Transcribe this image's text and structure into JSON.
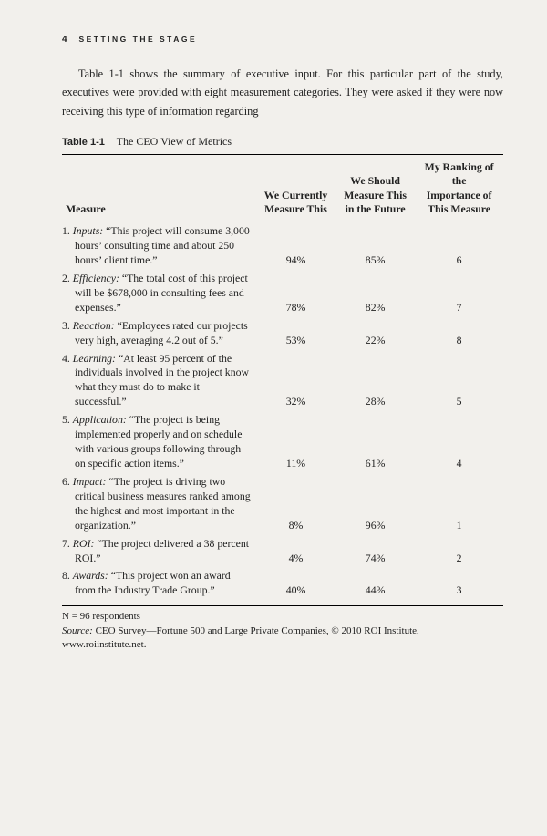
{
  "header": {
    "page_number": "4",
    "running_title": "SETTING THE STAGE"
  },
  "intro": "Table 1-1 shows the summary of executive input. For this particular part of the study, executives were provided with eight measurement categories. They were asked if they were now receiving this type of information regarding",
  "table": {
    "label": "Table 1-1",
    "title": "The CEO View of Metrics",
    "columns": {
      "measure": "Measure",
      "col1_l1": "We Currently",
      "col1_l2": "Measure This",
      "col2_l1": "We Should",
      "col2_l2": "Measure This",
      "col2_l3": "in the Future",
      "col3_l1": "My Ranking of the",
      "col3_l2": "Importance of",
      "col3_l3": "This Measure"
    },
    "rows": [
      {
        "num": "1.",
        "term": "Inputs:",
        "rest": " “This project will consume 3,000 hours’ consulting time and about 250 hours’ client time.”",
        "c1": "94%",
        "c2": "85%",
        "c3": "6"
      },
      {
        "num": "2.",
        "term": "Efficiency:",
        "rest": " “The total cost of this project will be $678,000 in consulting fees and expenses.”",
        "c1": "78%",
        "c2": "82%",
        "c3": "7"
      },
      {
        "num": "3.",
        "term": "Reaction:",
        "rest": " “Employees rated our projects very high, averaging 4.2 out of 5.”",
        "c1": "53%",
        "c2": "22%",
        "c3": "8"
      },
      {
        "num": "4.",
        "term": "Learning:",
        "rest": " “At least 95 percent of the individuals involved in the project know what they must do to make it successful.”",
        "c1": "32%",
        "c2": "28%",
        "c3": "5"
      },
      {
        "num": "5.",
        "term": "Application:",
        "rest": " “The project is being implemented properly and on schedule with various groups following through on specific action items.”",
        "c1": "11%",
        "c2": "61%",
        "c3": "4"
      },
      {
        "num": "6.",
        "term": "Impact:",
        "rest": " “The project is driving two critical business measures ranked among the highest and most important in the organization.”",
        "c1": "8%",
        "c2": "96%",
        "c3": "1"
      },
      {
        "num": "7.",
        "term": "ROI:",
        "rest": " “The project delivered a 38 percent ROI.”",
        "c1": "4%",
        "c2": "74%",
        "c3": "2"
      },
      {
        "num": "8.",
        "term": "Awards:",
        "rest": " “This project won an award from the Industry Trade Group.”",
        "c1": "40%",
        "c2": "44%",
        "c3": "3"
      }
    ]
  },
  "footnote": {
    "n": "N = 96 respondents",
    "source_label": "Source:",
    "source_text": " CEO Survey—Fortune 500 and Large Private Companies, © 2010 ROI Institute, www.roiinstitute.net."
  }
}
